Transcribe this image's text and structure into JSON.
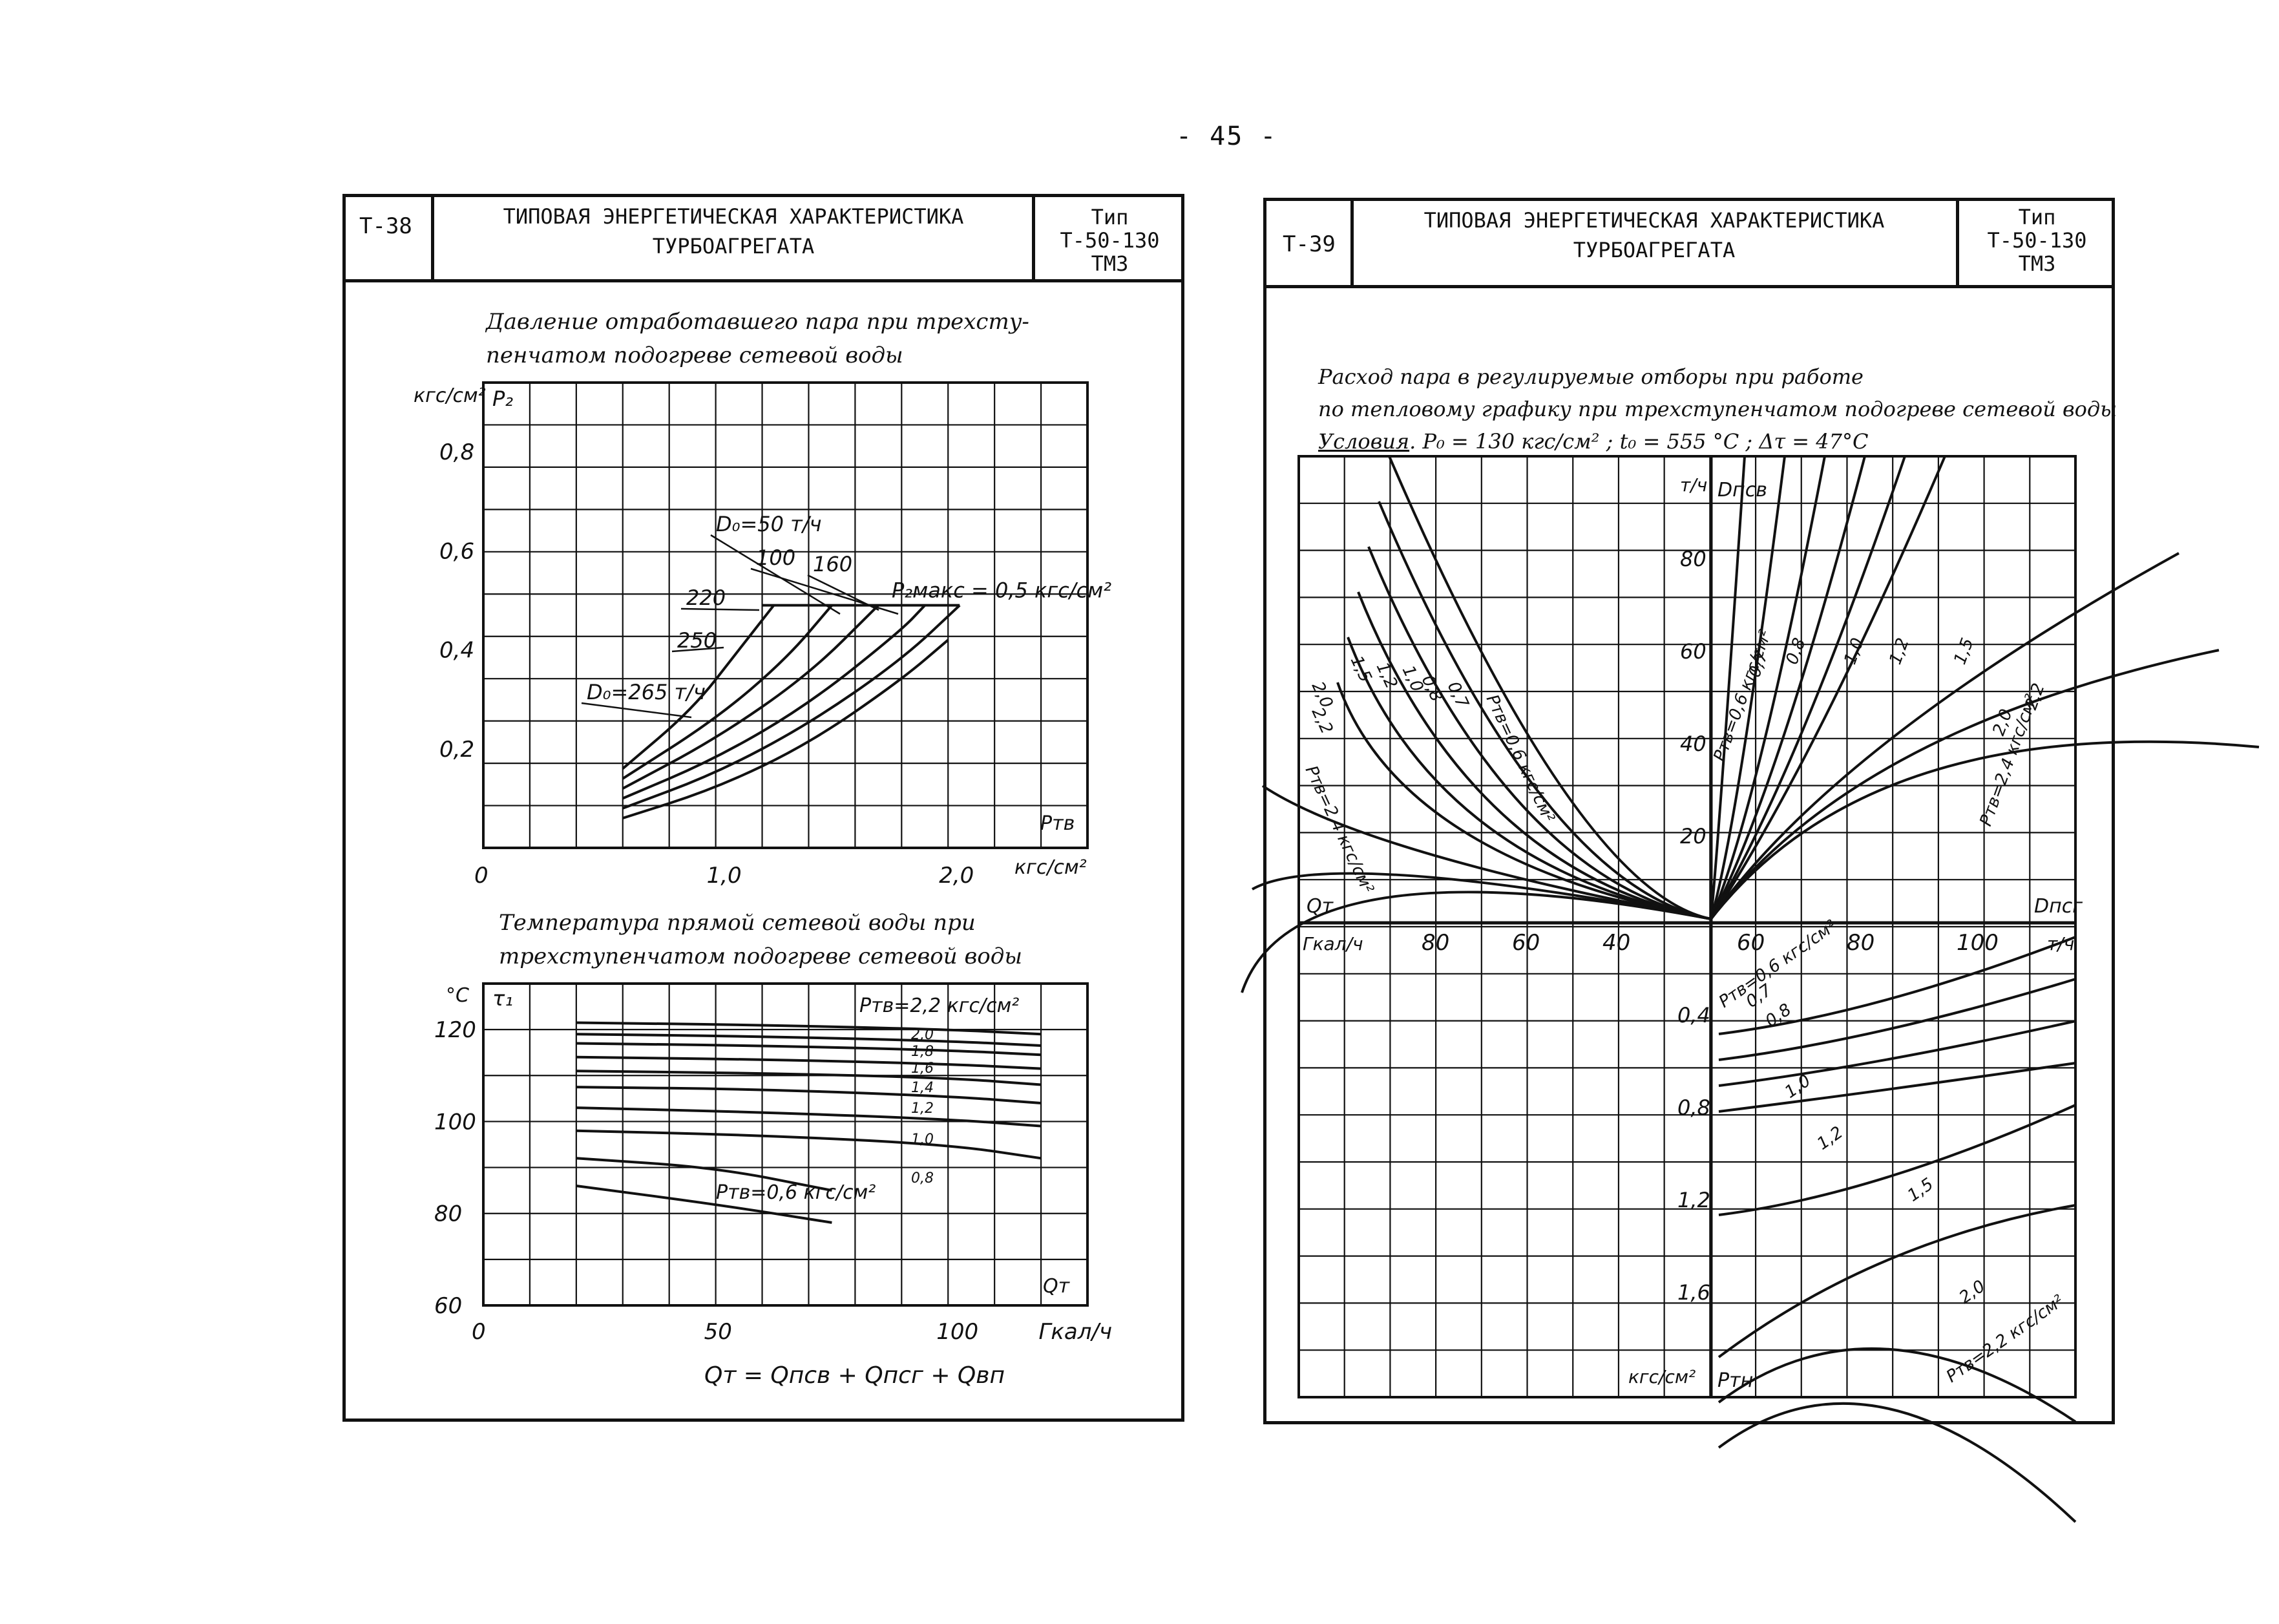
{
  "page_number": "- 45 -",
  "sheets": [
    {
      "id": "Т-38",
      "title_line1": "ТИПОВАЯ ЭНЕРГЕТИЧЕСКАЯ ХАРАКТЕРИСТИКА",
      "title_line2": "ТУРБОАГРЕГАТА",
      "type_label": "Тип",
      "type_model": "Т-50-130",
      "type_maker": "ТМЗ"
    },
    {
      "id": "Т-39",
      "title_line1": "ТИПОВАЯ ЭНЕРГЕТИЧЕСКАЯ ХАРАКТЕРИСТИКА",
      "title_line2": "ТУРБОАГРЕГАТА",
      "type_label": "Тип",
      "type_model": "Т-50-130",
      "type_maker": "ТМЗ"
    }
  ],
  "chart_data": [
    {
      "type": "line",
      "title": "Давление отработавшего пара при трехступенчатом подогреве сетевой воды",
      "title_line1": "Давление отработавшего пара при трехсту-",
      "title_line2": "пенчатом подогреве сетевой воды",
      "y_unit": "кгс/см²",
      "y_symbol": "P₂",
      "x_symbol": "Pтв",
      "x_unit": "кгс/см²",
      "xlim": [
        0,
        2.6
      ],
      "ylim": [
        0,
        0.94
      ],
      "x_ticks": [
        {
          "v": 0,
          "label": "0"
        },
        {
          "v": 1.0,
          "label": "1,0"
        },
        {
          "v": 2.0,
          "label": "2,0"
        }
      ],
      "y_ticks": [
        {
          "v": 0.2,
          "label": "0,2"
        },
        {
          "v": 0.4,
          "label": "0,4"
        },
        {
          "v": 0.6,
          "label": "0,6"
        },
        {
          "v": 0.8,
          "label": "0,8"
        }
      ],
      "series": [
        {
          "name": "D₀=50 т/ч",
          "x": [
            0.6,
            1.0,
            1.4,
            1.8,
            2.0
          ],
          "y": [
            0.06,
            0.12,
            0.21,
            0.34,
            0.42
          ]
        },
        {
          "name": "100",
          "x": [
            0.6,
            1.0,
            1.4,
            1.8,
            2.05
          ],
          "y": [
            0.08,
            0.15,
            0.25,
            0.38,
            0.49
          ]
        },
        {
          "name": "160",
          "x": [
            0.6,
            1.0,
            1.4,
            1.8,
            1.9
          ],
          "y": [
            0.1,
            0.18,
            0.29,
            0.44,
            0.49
          ]
        },
        {
          "name": "220",
          "x": [
            0.6,
            1.0,
            1.4,
            1.7
          ],
          "y": [
            0.12,
            0.22,
            0.35,
            0.49
          ]
        },
        {
          "name": "250",
          "x": [
            0.6,
            1.0,
            1.3,
            1.5
          ],
          "y": [
            0.14,
            0.26,
            0.38,
            0.49
          ]
        },
        {
          "name": "D₀=265 т/ч",
          "x": [
            0.6,
            0.9,
            1.1,
            1.25
          ],
          "y": [
            0.16,
            0.28,
            0.4,
            0.49
          ]
        }
      ],
      "limit_line": {
        "label": "P₂макс = 0,5 кгс/см²",
        "y": 0.49
      },
      "series_labels": [
        "D₀=50 т/ч",
        "100",
        "160",
        "220",
        "250",
        "D₀=265 т/ч"
      ]
    },
    {
      "type": "line",
      "title": "Температура прямой сетевой воды при трехступенчатом подогреве сетевой воды",
      "title_line1": "Температура прямой сетевой воды при",
      "title_line2": "трехступенчатом подогреве сетевой воды",
      "y_unit": "°С",
      "y_symbol": "τ₁",
      "x_symbol": "Qт",
      "x_unit": "Гкал/ч",
      "formula": "Qт = Qпсв + Qпсг + Qвп",
      "xlim": [
        0,
        130
      ],
      "ylim": [
        60,
        130
      ],
      "x_ticks": [
        {
          "v": 0,
          "label": "0"
        },
        {
          "v": 50,
          "label": "50"
        },
        {
          "v": 100,
          "label": "100"
        },
        {
          "v": 122,
          "label": "Гкал/ч"
        }
      ],
      "y_ticks": [
        {
          "v": 60,
          "label": "60"
        },
        {
          "v": 80,
          "label": "80"
        },
        {
          "v": 100,
          "label": "100"
        },
        {
          "v": 120,
          "label": "120"
        }
      ],
      "series": [
        {
          "name": "Pтв=2,2 кгс/см²",
          "x": [
            20,
            60,
            100,
            120
          ],
          "y": [
            121.5,
            121.0,
            120.0,
            119.0
          ]
        },
        {
          "name": "2,0",
          "x": [
            20,
            60,
            100,
            120
          ],
          "y": [
            119.0,
            118.5,
            117.5,
            116.5
          ]
        },
        {
          "name": "1,8",
          "x": [
            20,
            60,
            100,
            120
          ],
          "y": [
            117.0,
            116.5,
            115.5,
            114.5
          ]
        },
        {
          "name": "1,6",
          "x": [
            20,
            60,
            100,
            120
          ],
          "y": [
            114.0,
            113.5,
            112.5,
            111.5
          ]
        },
        {
          "name": "1,4",
          "x": [
            20,
            60,
            100,
            120
          ],
          "y": [
            111.0,
            110.5,
            109.5,
            108.0
          ]
        },
        {
          "name": "1,2",
          "x": [
            20,
            60,
            100,
            120
          ],
          "y": [
            107.5,
            107.0,
            105.5,
            104.0
          ]
        },
        {
          "name": "1,0",
          "x": [
            20,
            60,
            100,
            120
          ],
          "y": [
            103.0,
            102.0,
            100.5,
            99.0
          ]
        },
        {
          "name": "0,8",
          "x": [
            20,
            60,
            100,
            120
          ],
          "y": [
            98.0,
            97.0,
            95.0,
            92.0
          ]
        },
        {
          "name": "Pтв=0,6 кгс/см²",
          "x": [
            20,
            50,
            75
          ],
          "y": [
            92.0,
            90.0,
            85.0
          ]
        },
        {
          "name": "",
          "x": [
            20,
            50,
            75
          ],
          "y": [
            86.0,
            82.0,
            78.0
          ]
        }
      ],
      "series_labels": [
        "Pтв=2,2 кгс/см²",
        "2,0",
        "1,8",
        "1,6",
        "1,4",
        "1,2",
        "1,0",
        "0,8",
        "Pтв=0,6 кгс/см²"
      ]
    },
    {
      "type": "line",
      "title": "Расход пара в регулируемые отборы при работе по тепловому графику при трехступенчатом подогреве сетевой воды",
      "title_line1": "Расход пара в регулируемые отборы при работе",
      "title_line2": "по тепловому графику при трехступенчатом подогреве сетевой воды",
      "conditions_label": "Условия",
      "conditions": ". P₀ = 130 кгс/см² ; t₀ = 555 °С ; Δτ = 47°С",
      "quadrants": {
        "upper_right": {
          "x": "Dпсг",
          "y": "Dпсв",
          "y_unit": "т/ч",
          "y_ticks": [
            "20",
            "40",
            "60",
            "80"
          ]
        },
        "upper_left": {
          "x": "Qт",
          "x_unit": "Гкал/ч",
          "x_ticks": [
            "80",
            "60",
            "40"
          ]
        },
        "lower_right": {
          "x": "Dпсг",
          "x_unit": "т/ч",
          "x_ticks": [
            "60",
            "80",
            "100"
          ],
          "y": "Pтн",
          "y_unit": "кгс/см²",
          "y_ticks": [
            "0,4",
            "0,8",
            "1,2",
            "1,6"
          ]
        }
      },
      "series_upper_left": [
        {
          "name": "Pтв=0,6 кгс/см²"
        },
        {
          "name": "0,7"
        },
        {
          "name": "0,8"
        },
        {
          "name": "1,0"
        },
        {
          "name": "1,2"
        },
        {
          "name": "1,5"
        },
        {
          "name": "2,0"
        },
        {
          "name": "2,2"
        },
        {
          "name": "Pтв=2,4 кгс/см²"
        }
      ],
      "series_upper_right": [
        {
          "name": "Pтв=0,6 кгс/см²"
        },
        {
          "name": "0,7"
        },
        {
          "name": "0,8"
        },
        {
          "name": "1,0"
        },
        {
          "name": "1,2"
        },
        {
          "name": "1,5"
        },
        {
          "name": "2,0"
        },
        {
          "name": "2,2"
        },
        {
          "name": "Pтв=2,4 кгс/см²"
        }
      ],
      "series_lower_right": [
        {
          "name": "Pтв=0,6 кгс/см²"
        },
        {
          "name": "0,7"
        },
        {
          "name": "0,8"
        },
        {
          "name": "1,0"
        },
        {
          "name": "1,2"
        },
        {
          "name": "1,5"
        },
        {
          "name": "2,0"
        },
        {
          "name": "Pтв=2,2 кгс/см²"
        }
      ]
    }
  ]
}
